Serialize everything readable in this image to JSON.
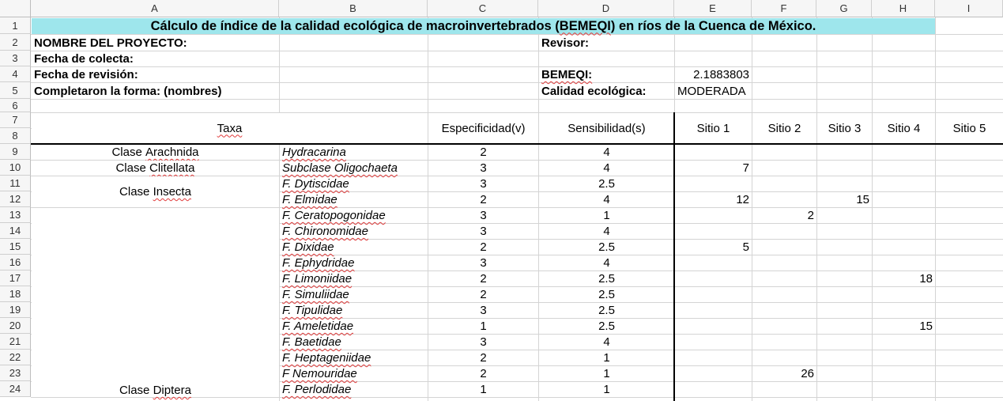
{
  "columns": [
    "A",
    "B",
    "C",
    "D",
    "E",
    "F",
    "G",
    "H",
    "I"
  ],
  "rows": [
    "1",
    "2",
    "3",
    "4",
    "5",
    "6",
    "7",
    "8",
    "9",
    "10",
    "11",
    "12",
    "13",
    "14",
    "15",
    "16",
    "17",
    "18",
    "19",
    "20",
    "21",
    "22",
    "23",
    "24"
  ],
  "title": "Cálculo de índice de la calidad ecológica de macroinvertebrados (BEMEQI) en ríos de la Cuenca de México.",
  "form": {
    "nombre_proyecto": "NOMBRE DEL PROYECTO:",
    "fecha_colecta": "Fecha de colecta:",
    "fecha_revision": "Fecha de revisión:",
    "completaron": "Completaron la forma: (nombres)",
    "revisor": "Revisor:",
    "bemeqi_label": "BEMEQI:",
    "bemeqi_value": "2.1883803",
    "calidad_label": "Calidad ecológica:",
    "calidad_value": "MODERADA"
  },
  "table_header": {
    "taxa": "Taxa",
    "especificidad": "Especificidad(v)",
    "sensibilidad": "Sensibilidad(s)",
    "sitio1": "Sitio 1",
    "sitio2": "Sitio 2",
    "sitio3": "Sitio 3",
    "sitio4": "Sitio 4",
    "sitio5": "Sitio 5"
  },
  "classes": {
    "arachnida": "Clase Arachnida",
    "clitellata": "Clase Clitellata",
    "insecta": "Clase Insecta",
    "diptera": "Clase Diptera"
  },
  "taxa_rows": [
    {
      "name": "Hydracarina",
      "v": "2",
      "s": "4",
      "s1": "",
      "s2": "",
      "s3": "",
      "s4": "",
      "s5": ""
    },
    {
      "name": "Subclase Oligochaeta",
      "v": "3",
      "s": "4",
      "s1": "7",
      "s2": "",
      "s3": "",
      "s4": "",
      "s5": ""
    },
    {
      "name": "F. Dytiscidae",
      "v": "3",
      "s": "2.5",
      "s1": "",
      "s2": "",
      "s3": "",
      "s4": "",
      "s5": ""
    },
    {
      "name": "F. Elmidae",
      "v": "2",
      "s": "4",
      "s1": "12",
      "s2": "",
      "s3": "15",
      "s4": "",
      "s5": ""
    },
    {
      "name": "F. Ceratopogonidae",
      "v": "3",
      "s": "1",
      "s1": "",
      "s2": "2",
      "s3": "",
      "s4": "",
      "s5": ""
    },
    {
      "name": "F. Chironomidae",
      "v": "3",
      "s": "4",
      "s1": "",
      "s2": "",
      "s3": "",
      "s4": "",
      "s5": ""
    },
    {
      "name": "F. Dixidae",
      "v": "2",
      "s": "2.5",
      "s1": "5",
      "s2": "",
      "s3": "",
      "s4": "",
      "s5": ""
    },
    {
      "name": "F. Ephydridae",
      "v": "3",
      "s": "4",
      "s1": "",
      "s2": "",
      "s3": "",
      "s4": "",
      "s5": ""
    },
    {
      "name": "F. Limoniidae",
      "v": "2",
      "s": "2.5",
      "s1": "",
      "s2": "",
      "s3": "",
      "s4": "18",
      "s5": ""
    },
    {
      "name": "F. Simuliidae",
      "v": "2",
      "s": "2.5",
      "s1": "",
      "s2": "",
      "s3": "",
      "s4": "",
      "s5": ""
    },
    {
      "name": "F. Tipulidae",
      "v": "3",
      "s": "2.5",
      "s1": "",
      "s2": "",
      "s3": "",
      "s4": "",
      "s5": ""
    },
    {
      "name": "F. Ameletidae",
      "v": "1",
      "s": "2.5",
      "s1": "",
      "s2": "",
      "s3": "",
      "s4": "15",
      "s5": ""
    },
    {
      "name": "F. Baetidae",
      "v": "3",
      "s": "4",
      "s1": "",
      "s2": "",
      "s3": "",
      "s4": "",
      "s5": ""
    },
    {
      "name": "F. Heptageniidae",
      "v": "2",
      "s": "1",
      "s1": "",
      "s2": "",
      "s3": "",
      "s4": "",
      "s5": ""
    },
    {
      "name": "F Nemouridae",
      "v": "2",
      "s": "1",
      "s1": "",
      "s2": "26",
      "s3": "",
      "s4": "",
      "s5": ""
    },
    {
      "name": "F. Perlodidae",
      "v": "1",
      "s": "1",
      "s1": "",
      "s2": "",
      "s3": "",
      "s4": "",
      "s5": ""
    }
  ]
}
